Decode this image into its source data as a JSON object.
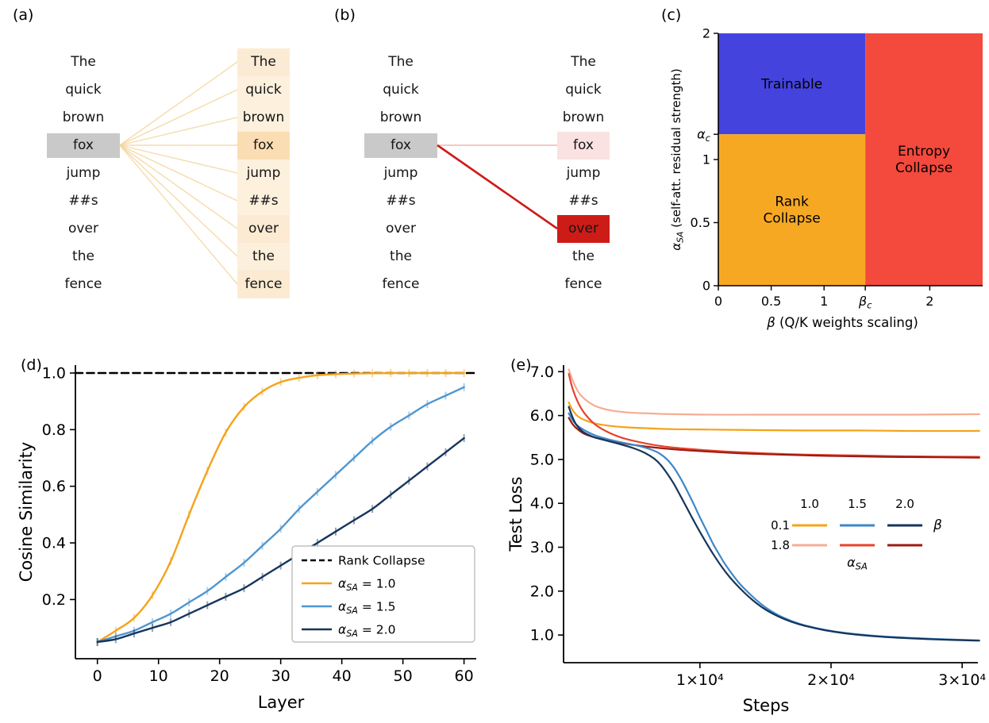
{
  "panels": {
    "a": {
      "label": "(a)",
      "tokens": [
        "The",
        "quick",
        "brown",
        "fox",
        "jump",
        "##s",
        "over",
        "the",
        "fence"
      ],
      "source_token": "fox",
      "source_index": 3,
      "source_highlight_color": "#c9c9c9",
      "attention_rgb": "243,179,87",
      "attention_weights": [
        0.26,
        0.2,
        0.2,
        0.45,
        0.2,
        0.2,
        0.27,
        0.21,
        0.27
      ],
      "line_color": "rgba(243,214,158,0.85)",
      "line_width": 1.4
    },
    "b": {
      "label": "(b)",
      "tokens": [
        "The",
        "quick",
        "brown",
        "fox",
        "jump",
        "##s",
        "over",
        "the",
        "fence"
      ],
      "source_token": "fox",
      "source_index": 3,
      "source_highlight_color": "#c9c9c9",
      "attention_rgb": "205,28,24",
      "attention_weights": [
        0,
        0,
        0,
        0.13,
        0,
        0,
        1,
        0,
        0
      ],
      "lines": [
        {
          "to_index": 3,
          "color": "rgba(236,157,150,0.75)",
          "width": 1.6
        },
        {
          "to_index": 6,
          "color": "#cd1c18",
          "width": 2.6
        }
      ]
    },
    "c": {
      "label": "(c)"
    },
    "d": {
      "label": "(d)"
    },
    "e": {
      "label": "(e)"
    }
  },
  "chart_data": [
    {
      "id": "phase-diagram",
      "panel": "c",
      "type": "heatmap",
      "xlabel": "β (Q/K weights scaling)",
      "ylabel": "α_SA (self-att. residual strength)",
      "xlim": [
        0,
        2.5
      ],
      "ylim": [
        0,
        2
      ],
      "alpha_c": 1.2,
      "beta_c": 1.39,
      "xticks": [
        {
          "v": 0,
          "label": "0"
        },
        {
          "v": 0.5,
          "label": "0.5"
        },
        {
          "v": 1,
          "label": "1"
        },
        {
          "v": 1.39,
          "label": "β_c"
        },
        {
          "v": 2,
          "label": "2"
        }
      ],
      "yticks": [
        {
          "v": 0,
          "label": "0"
        },
        {
          "v": 0.5,
          "label": "0.5"
        },
        {
          "v": 1,
          "label": "1"
        },
        {
          "v": 1.2,
          "label": "α_c"
        },
        {
          "v": 2,
          "label": "2"
        }
      ],
      "regions": [
        {
          "name": "Trainable",
          "lines": [
            "Trainable"
          ],
          "x": [
            0,
            1.39
          ],
          "y": [
            1.2,
            2
          ],
          "color": "#4543de",
          "text_color": "#ffffff"
        },
        {
          "name": "Rank Collapse",
          "lines": [
            "Rank",
            "Collapse"
          ],
          "x": [
            0,
            1.39
          ],
          "y": [
            0,
            1.2
          ],
          "color": "#f7a823",
          "text_color": "#101010"
        },
        {
          "name": "Entropy Collapse",
          "lines": [
            "Entropy",
            "Collapse"
          ],
          "x": [
            1.39,
            2.5
          ],
          "y": [
            0,
            2
          ],
          "color": "#f4493d",
          "text_color": "#101010"
        }
      ]
    },
    {
      "id": "cosine-similarity-vs-layer",
      "panel": "d",
      "type": "line",
      "xlabel": "Layer",
      "ylabel": "Cosine Similarity",
      "xlim": [
        -3.6,
        62
      ],
      "ylim": [
        -0.009,
        1.028
      ],
      "xticks": [
        {
          "v": 0,
          "label": "0"
        },
        {
          "v": 10,
          "label": "10"
        },
        {
          "v": 20,
          "label": "20"
        },
        {
          "v": 30,
          "label": "30"
        },
        {
          "v": 40,
          "label": "40"
        },
        {
          "v": 50,
          "label": "50"
        },
        {
          "v": 60,
          "label": "60"
        }
      ],
      "yticks": [
        {
          "v": 0.2,
          "label": "0.2"
        },
        {
          "v": 0.4,
          "label": "0.4"
        },
        {
          "v": 0.6,
          "label": "0.6"
        },
        {
          "v": 0.8,
          "label": "0.8"
        },
        {
          "v": 1.0,
          "label": "1.0"
        }
      ],
      "legend_position": "lower right",
      "series": [
        {
          "name": "Rank Collapse",
          "color": "#000000",
          "dash": "9,5.5",
          "width": 2.6,
          "markers": false,
          "x": [
            -3.6,
            62
          ],
          "y": [
            1.0,
            1.0
          ]
        },
        {
          "name": "α_SA = 1.0",
          "color": "#F5A31A",
          "width": 2.4,
          "markers": true,
          "x": [
            0,
            3,
            6,
            9,
            12,
            15,
            18,
            21,
            24,
            27,
            30,
            33,
            36,
            39,
            42,
            45,
            48,
            51,
            54,
            57,
            60
          ],
          "y": [
            0.05,
            0.09,
            0.135,
            0.215,
            0.335,
            0.5,
            0.655,
            0.79,
            0.88,
            0.935,
            0.968,
            0.983,
            0.992,
            0.996,
            0.998,
            0.999,
            1.0,
            1.0,
            1.0,
            1.0,
            1.0
          ]
        },
        {
          "name": "α_SA = 1.5",
          "color": "#4E96D1",
          "width": 2.4,
          "markers": true,
          "x": [
            0,
            3,
            6,
            9,
            12,
            15,
            18,
            21,
            24,
            27,
            30,
            33,
            36,
            39,
            42,
            45,
            48,
            51,
            54,
            57,
            60
          ],
          "y": [
            0.05,
            0.07,
            0.09,
            0.12,
            0.15,
            0.19,
            0.23,
            0.28,
            0.33,
            0.39,
            0.45,
            0.52,
            0.58,
            0.64,
            0.7,
            0.76,
            0.81,
            0.85,
            0.89,
            0.92,
            0.95
          ]
        },
        {
          "name": "α_SA = 2.0",
          "color": "#16355C",
          "width": 2.4,
          "markers": true,
          "x": [
            0,
            3,
            6,
            9,
            12,
            15,
            18,
            21,
            24,
            27,
            30,
            33,
            36,
            39,
            42,
            45,
            48,
            51,
            54,
            57,
            60
          ],
          "y": [
            0.05,
            0.06,
            0.08,
            0.1,
            0.12,
            0.15,
            0.18,
            0.21,
            0.24,
            0.28,
            0.32,
            0.36,
            0.4,
            0.44,
            0.48,
            0.52,
            0.57,
            0.62,
            0.67,
            0.72,
            0.77
          ]
        }
      ]
    },
    {
      "id": "test-loss-vs-steps",
      "panel": "e",
      "type": "line",
      "xlabel": "Steps",
      "ylabel": "Test Loss",
      "xlim": [
        -400,
        31200
      ],
      "ylim": [
        0.37,
        7.15
      ],
      "xticks": [
        {
          "v": 10000,
          "label": "1×10⁴"
        },
        {
          "v": 20000,
          "label": "2×10⁴"
        },
        {
          "v": 30000,
          "label": "3×10⁴"
        }
      ],
      "yticks": [
        {
          "v": 1.0,
          "label": "1.0"
        },
        {
          "v": 2.0,
          "label": "2.0"
        },
        {
          "v": 3.0,
          "label": "3.0"
        },
        {
          "v": 4.0,
          "label": "4.0"
        },
        {
          "v": 5.0,
          "label": "5.0"
        },
        {
          "v": 6.0,
          "label": "6.0"
        },
        {
          "v": 7.0,
          "label": "7.0"
        }
      ],
      "series": [
        {
          "name": "α_SA=1.8, β=1.0",
          "alpha_sa": 1.8,
          "beta": 1.0,
          "color": "#F7AC93",
          "width": 2.2,
          "markers": false,
          "x": [
            0,
            300,
            700,
            1200,
            2000,
            3000,
            4500,
            6000,
            8000,
            11000,
            14000,
            18000,
            22000,
            26000,
            31300
          ],
          "y": [
            7.05,
            6.8,
            6.55,
            6.38,
            6.22,
            6.13,
            6.07,
            6.05,
            6.03,
            6.02,
            6.02,
            6.02,
            6.02,
            6.02,
            6.03
          ]
        },
        {
          "name": "α_SA=0.1, β=1.0",
          "alpha_sa": 0.1,
          "beta": 1.0,
          "color": "#F5A31A",
          "width": 2.2,
          "markers": false,
          "x": [
            0,
            300,
            700,
            1200,
            2000,
            3000,
            4500,
            6000,
            8000,
            11000,
            14000,
            18000,
            22000,
            26000,
            31300
          ],
          "y": [
            6.3,
            6.12,
            5.98,
            5.9,
            5.82,
            5.77,
            5.73,
            5.71,
            5.69,
            5.68,
            5.67,
            5.66,
            5.66,
            5.65,
            5.65
          ]
        },
        {
          "name": "α_SA=1.8, β=1.5",
          "alpha_sa": 1.8,
          "beta": 1.5,
          "color": "#E8432C",
          "width": 2.2,
          "markers": false,
          "x": [
            0,
            300,
            700,
            1200,
            2000,
            3000,
            4000,
            5000,
            6500,
            8000,
            10000,
            12000,
            15000,
            18000,
            22000,
            26000,
            31300
          ],
          "y": [
            6.95,
            6.6,
            6.3,
            6.05,
            5.8,
            5.62,
            5.5,
            5.42,
            5.33,
            5.27,
            5.22,
            5.18,
            5.14,
            5.11,
            5.09,
            5.07,
            5.06
          ]
        },
        {
          "name": "α_SA=1.8, β=2.0",
          "alpha_sa": 1.8,
          "beta": 2.0,
          "color": "#9B1B13",
          "width": 2.2,
          "markers": false,
          "x": [
            0,
            300,
            700,
            1200,
            2000,
            3000,
            4500,
            6000,
            8000,
            10000,
            13000,
            16000,
            20000,
            24000,
            28000,
            31300
          ],
          "y": [
            5.95,
            5.8,
            5.68,
            5.58,
            5.5,
            5.43,
            5.35,
            5.29,
            5.23,
            5.19,
            5.14,
            5.11,
            5.08,
            5.06,
            5.05,
            5.04
          ]
        },
        {
          "name": "α_SA=0.1, β=1.5",
          "alpha_sa": 0.1,
          "beta": 1.5,
          "color": "#3E87C8",
          "width": 2.2,
          "markers": false,
          "x": [
            0,
            400,
            1000,
            2000,
            3000,
            4000,
            5000,
            5800,
            6500,
            7000,
            7500,
            8000,
            8500,
            9000,
            9500,
            10000,
            10500,
            11000,
            11500,
            12000,
            13000,
            14000,
            15000,
            16000,
            17000,
            18000,
            19500,
            21000,
            23000,
            25000,
            28000,
            31300
          ],
          "y": [
            6.05,
            5.85,
            5.7,
            5.55,
            5.46,
            5.39,
            5.33,
            5.27,
            5.2,
            5.12,
            5.0,
            4.82,
            4.58,
            4.3,
            4.0,
            3.68,
            3.38,
            3.08,
            2.82,
            2.58,
            2.18,
            1.88,
            1.63,
            1.45,
            1.32,
            1.22,
            1.12,
            1.05,
            0.99,
            0.95,
            0.91,
            0.88
          ]
        },
        {
          "name": "α_SA=0.1, β=2.0",
          "alpha_sa": 0.1,
          "beta": 2.0,
          "color": "#16355C",
          "width": 2.2,
          "markers": false,
          "x": [
            0,
            300,
            600,
            1000,
            1500,
            2000,
            3000,
            4000,
            5000,
            5800,
            6500,
            7000,
            7500,
            8000,
            8500,
            9000,
            9500,
            10000,
            11000,
            12000,
            13000,
            14000,
            15000,
            16000,
            17000,
            18000,
            19500,
            21000,
            23000,
            25000,
            28000,
            31300
          ],
          "y": [
            6.2,
            5.95,
            5.78,
            5.65,
            5.56,
            5.5,
            5.42,
            5.34,
            5.25,
            5.15,
            5.02,
            4.88,
            4.68,
            4.45,
            4.18,
            3.9,
            3.62,
            3.35,
            2.85,
            2.42,
            2.08,
            1.8,
            1.58,
            1.42,
            1.3,
            1.21,
            1.11,
            1.04,
            0.98,
            0.94,
            0.9,
            0.87
          ]
        }
      ],
      "legend": {
        "col_headers": [
          "1.0",
          "1.5",
          "2.0"
        ],
        "rows": [
          {
            "label": "0.1",
            "colors": [
              "#F5A31A",
              "#3E87C8",
              "#16355C"
            ]
          },
          {
            "label": "1.8",
            "colors": [
              "#F7AC93",
              "#E8432C",
              "#9B1B13"
            ]
          }
        ],
        "row_axis_label": "β",
        "col_axis_label": "α_SA"
      }
    }
  ]
}
